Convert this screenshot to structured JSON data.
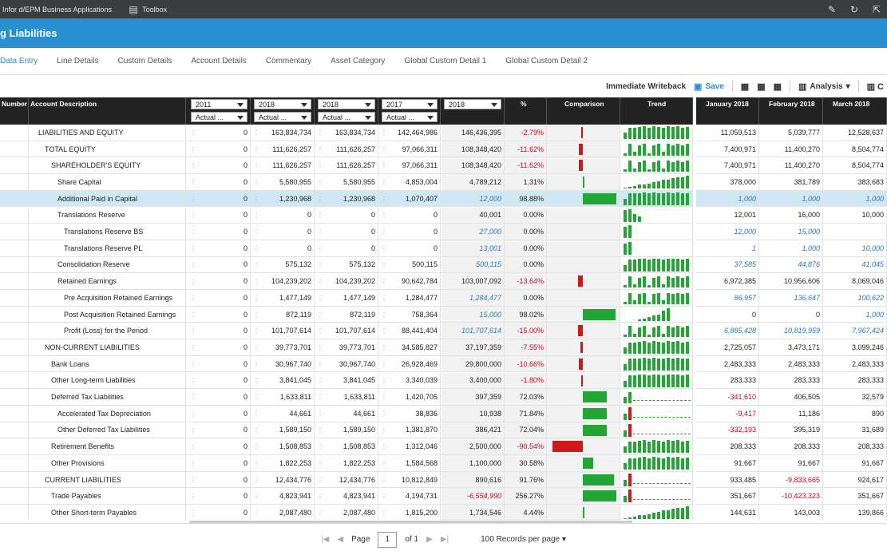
{
  "app": {
    "title": "Infor d/EPM Business Applications",
    "toolbox": "Toolbox"
  },
  "page_title": "g Liabilities",
  "tabs": [
    "Data Entry",
    "Line Details",
    "Custom Details",
    "Account Details",
    "Commentary",
    "Asset Category",
    "Global Custom Detail 1",
    "Global Custom Detail 2"
  ],
  "toolbar": {
    "writeback": "Immediate Writeback",
    "save": "Save",
    "analysis": "Analysis"
  },
  "columns": {
    "number": "Number",
    "desc": "Account Description",
    "periods": [
      {
        "year": "2011",
        "scenario": "Actual ..."
      },
      {
        "year": "2018",
        "scenario": "Actual ..."
      },
      {
        "year": "2018",
        "scenario": "Actual ..."
      },
      {
        "year": "2017",
        "scenario": "Actual ..."
      },
      {
        "year": "2018",
        "scenario": ""
      }
    ],
    "pct": "%",
    "comparison": "Comparison",
    "trend": "Trend",
    "months": [
      "January 2018",
      "February 2018",
      "March 2018"
    ]
  },
  "rows": [
    {
      "desc": "LIABILITIES AND EQUITY",
      "indent": 1,
      "v": [
        "0",
        "163,834,734",
        "163,834,734",
        "142,464,986",
        "146,436,395"
      ],
      "pct": "-2.79%",
      "m": [
        "11,059,513",
        "5,039,777",
        "12,528,637"
      ],
      "cmp": -0.03,
      "trend": "full"
    },
    {
      "desc": "TOTAL EQUITY",
      "indent": 2,
      "v": [
        "0",
        "111,626,257",
        "111,626,257",
        "97,066,311",
        "108,348,420"
      ],
      "pct": "-11.62%",
      "m": [
        "7,400,971",
        "11,400,270",
        "8,504,774"
      ],
      "cmp": -0.12,
      "trend": "mix"
    },
    {
      "desc": "SHAREHOLDER'S EQUITY",
      "indent": 3,
      "v": [
        "0",
        "111,626,257",
        "111,626,257",
        "97,066,311",
        "108,348,420"
      ],
      "pct": "-11.62%",
      "m": [
        "7,400,971",
        "11,400,270",
        "8,504,774"
      ],
      "cmp": -0.12,
      "trend": "mix"
    },
    {
      "desc": "Share Capital",
      "indent": 4,
      "v": [
        "0",
        "5,580,955",
        "5,580,955",
        "4,853,004",
        "4,789,212"
      ],
      "pct": "1.31%",
      "m": [
        "378,000",
        "381,789",
        "383,683"
      ],
      "cmp": 0.01,
      "trend": "rise"
    },
    {
      "desc": "Additional Paid in Capital",
      "indent": 4,
      "hl": true,
      "v": [
        "0",
        "1,230,968",
        "1,230,968",
        "1,070,407",
        "12,000"
      ],
      "it5": true,
      "pct": "98.88%",
      "m": [
        "1,000",
        "1,000",
        "1,000"
      ],
      "itm": true,
      "cmp": 0.99,
      "trend": "full"
    },
    {
      "desc": "Translations Reserve",
      "indent": 4,
      "v": [
        "0",
        "0",
        "0",
        "0",
        "40,001"
      ],
      "pct": "0.00%",
      "m": [
        "12,001",
        "16,000",
        "10,000"
      ],
      "cmp": 0,
      "trend": "few"
    },
    {
      "desc": "Translations Reserve BS",
      "indent": 5,
      "v": [
        "0",
        "0",
        "0",
        "0",
        "27,000"
      ],
      "it5": true,
      "pct": "0.00%",
      "m": [
        "12,000",
        "15,000",
        ""
      ],
      "itm": true,
      "cmp": 0,
      "trend": "two"
    },
    {
      "desc": "Translations Reserve PL",
      "indent": 5,
      "v": [
        "0",
        "0",
        "0",
        "0",
        "13,001"
      ],
      "it5": true,
      "pct": "0.00%",
      "m": [
        "1",
        "1,000",
        "10,000"
      ],
      "itm": true,
      "cmp": 0,
      "trend": "two"
    },
    {
      "desc": "Consolidation Reserve",
      "indent": 4,
      "v": [
        "0",
        "575,132",
        "575,132",
        "500,115",
        "500,115"
      ],
      "it5": true,
      "pct": "0.00%",
      "m": [
        "37,585",
        "44,876",
        "41,045"
      ],
      "itm": true,
      "cmp": 0,
      "trend": "full"
    },
    {
      "desc": "Retained Earnings",
      "indent": 4,
      "v": [
        "0",
        "104,239,202",
        "104,239,202",
        "90,642,784",
        "103,007,092"
      ],
      "pct": "-13.64%",
      "m": [
        "6,972,385",
        "10,956,606",
        "8,069,046"
      ],
      "cmp": -0.14,
      "trend": "mix"
    },
    {
      "desc": "Pre Acquisition Retained Earnings",
      "indent": 5,
      "v": [
        "0",
        "1,477,149",
        "1,477,149",
        "1,284,477",
        "1,284,477"
      ],
      "it5": true,
      "pct": "0.00%",
      "m": [
        "86,957",
        "136,647",
        "100,622"
      ],
      "itm": true,
      "cmp": 0,
      "trend": "mix"
    },
    {
      "desc": "Post Acquisition Retained Earnings",
      "indent": 5,
      "v": [
        "0",
        "872,119",
        "872,119",
        "758,364",
        "15,000"
      ],
      "it5": true,
      "pct": "98.02%",
      "m": [
        "0",
        "0",
        "1,000"
      ],
      "itm3": true,
      "cmp": 0.98,
      "trend": "late"
    },
    {
      "desc": "Profit (Loss) for the Period",
      "indent": 5,
      "v": [
        "0",
        "101,707,614",
        "101,707,614",
        "88,441,404",
        "101,707,614"
      ],
      "it5": true,
      "pct": "-15.00%",
      "m": [
        "6,885,428",
        "10,819,959",
        "7,967,424"
      ],
      "itm": true,
      "cmp": -0.15,
      "trend": "mix"
    },
    {
      "desc": "NON-CURRENT LIABILITIES",
      "indent": 2,
      "v": [
        "0",
        "39,773,701",
        "39,773,701",
        "34,585,827",
        "37,197,359"
      ],
      "pct": "-7.55%",
      "m": [
        "2,725,057",
        "3,473,171",
        "3,099,246"
      ],
      "cmp": -0.08,
      "trend": "full"
    },
    {
      "desc": "Bank Loans",
      "indent": 3,
      "v": [
        "0",
        "30,967,740",
        "30,967,740",
        "26,928,469",
        "29,800,000"
      ],
      "pct": "-10.66%",
      "m": [
        "2,483,333",
        "2,483,333",
        "2,483,333"
      ],
      "cmp": -0.11,
      "trend": "full"
    },
    {
      "desc": "Other Long-term Liabilities",
      "indent": 3,
      "v": [
        "0",
        "3,841,045",
        "3,841,045",
        "3,340,039",
        "3,400,000"
      ],
      "pct": "-1.80%",
      "m": [
        "283,333",
        "283,333",
        "283,333"
      ],
      "cmp": -0.02,
      "trend": "full"
    },
    {
      "desc": "Deferred Tax Liabilities",
      "indent": 3,
      "v": [
        "0",
        "1,633,811",
        "1,633,811",
        "1,420,705",
        "397,359"
      ],
      "pct": "72.03%",
      "m": [
        "-341,610",
        "406,505",
        "32,579"
      ],
      "neg0": true,
      "cmp": 0.72,
      "trend": "flat"
    },
    {
      "desc": "Accelerated Tax Depreciation",
      "indent": 4,
      "v": [
        "0",
        "44,661",
        "44,661",
        "38,836",
        "10,938"
      ],
      "pct": "71.84%",
      "m": [
        "-9,417",
        "11,186",
        "890"
      ],
      "neg0": true,
      "cmp": 0.72,
      "trend": "flatr"
    },
    {
      "desc": "Other Deferred Tax Liabilities",
      "indent": 4,
      "v": [
        "0",
        "1,589,150",
        "1,589,150",
        "1,381,870",
        "386,421"
      ],
      "pct": "72.04%",
      "m": [
        "-332,193",
        "395,319",
        "31,689"
      ],
      "neg0": true,
      "cmp": 0.72,
      "trend": "flatr"
    },
    {
      "desc": "Retirement Benefits",
      "indent": 3,
      "v": [
        "0",
        "1,508,853",
        "1,508,853",
        "1,312,046",
        "2,500,000"
      ],
      "pct": "-90.54%",
      "pneg": true,
      "m": [
        "208,333",
        "208,333",
        "208,333"
      ],
      "cmp": -0.91,
      "trend": "full"
    },
    {
      "desc": "Other Provisions",
      "indent": 3,
      "v": [
        "0",
        "1,822,253",
        "1,822,253",
        "1,584,568",
        "1,100,000"
      ],
      "pct": "30.58%",
      "m": [
        "91,667",
        "91,667",
        "91,667"
      ],
      "cmp": 0.31,
      "trend": "full"
    },
    {
      "desc": "CURRENT LIABILITIES",
      "indent": 2,
      "v": [
        "0",
        "12,434,776",
        "12,434,776",
        "10,812,849",
        "890,616"
      ],
      "pct": "91.76%",
      "m": [
        "933,485",
        "-9,833,665",
        "924,617"
      ],
      "neg1": true,
      "cmp": 0.92,
      "trend": "flatr"
    },
    {
      "desc": "Trade Payables",
      "indent": 3,
      "v": [
        "0",
        "4,823,941",
        "4,823,941",
        "4,194,731",
        "-6,554,990"
      ],
      "vneg5": true,
      "pct": "256.27%",
      "m": [
        "351,667",
        "-10,423,323",
        "351,667"
      ],
      "neg1": true,
      "cmp": 1.0,
      "trend": "flatr"
    },
    {
      "desc": "Other Short-term Payables",
      "indent": 3,
      "v": [
        "0",
        "2,087,480",
        "2,087,480",
        "1,815,200",
        "1,734,546"
      ],
      "pct": "4.44%",
      "m": [
        "144,631",
        "143,003",
        "139,866"
      ],
      "cmp": 0.04,
      "trend": "rise"
    }
  ],
  "footer": {
    "page_label": "Page",
    "page": "1",
    "of": "of 1",
    "per_page": "100 Records per page"
  },
  "colors": {
    "accent": "#2a8fd0",
    "positive": "#23a636",
    "negative": "#cc1a1a",
    "header": "#222222"
  }
}
